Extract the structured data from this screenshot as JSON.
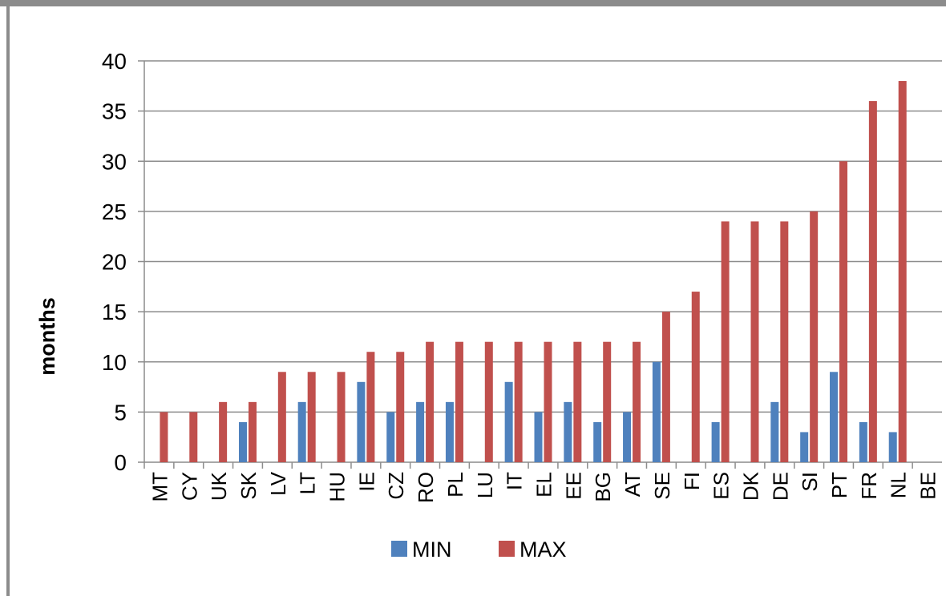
{
  "chart_data": {
    "type": "bar",
    "ylabel": "months",
    "ylim": [
      0,
      40
    ],
    "yticks": [
      0,
      5,
      10,
      15,
      20,
      25,
      30,
      35,
      40
    ],
    "grid": true,
    "legend_position": "bottom",
    "categories": [
      "MT",
      "CY",
      "UK",
      "SK",
      "LV",
      "LT",
      "HU",
      "IE",
      "CZ",
      "RO",
      "PL",
      "LU",
      "IT",
      "EL",
      "EE",
      "BG",
      "AT",
      "SE",
      "FI",
      "ES",
      "DK",
      "DE",
      "SI",
      "PT",
      "FR",
      "NL",
      "BE"
    ],
    "series": [
      {
        "name": "MIN",
        "color": "#4f81bd",
        "values": [
          0,
          0,
          0,
          4,
          0,
          6,
          0,
          8,
          5,
          6,
          6,
          0,
          8,
          5,
          6,
          4,
          5,
          10,
          0,
          4,
          0,
          6,
          3,
          9,
          4,
          3,
          0
        ]
      },
      {
        "name": "MAX",
        "color": "#c0504d",
        "values": [
          5,
          5,
          6,
          6,
          9,
          9,
          9,
          11,
          11,
          12,
          12,
          12,
          12,
          12,
          12,
          12,
          12,
          15,
          17,
          24,
          24,
          24,
          25,
          30,
          36,
          38,
          0
        ]
      }
    ]
  }
}
